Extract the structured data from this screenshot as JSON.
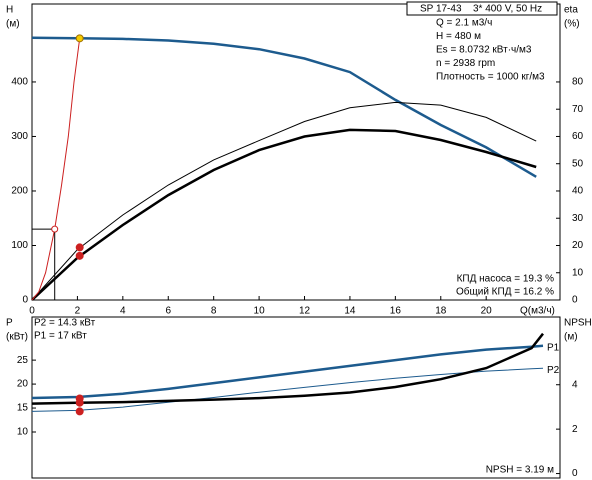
{
  "chart_data": [
    {
      "type": "line",
      "model": "SP 17-43",
      "supply": "3* 400 V, 50 Hz",
      "info": [
        "Q = 2.1 м3/ч",
        "H = 480 м",
        "Es = 8.0732 кВт·ч/м3",
        "n = 2938 rpm",
        "Плотность = 1000 кг/м3"
      ],
      "notes": [
        "КПД насоса = 19.3 %",
        "Общий КПД = 16.2 %"
      ],
      "ylabel": "H",
      "yunit": "(м)",
      "y2label": "eta",
      "y2unit": "(%)",
      "xlabel": "Q(м3/ч)",
      "xlim": [
        0,
        23.25
      ],
      "xticks": [
        0,
        2,
        4,
        6,
        8,
        10,
        12,
        14,
        16,
        18,
        20
      ],
      "ylim": [
        0,
        543
      ],
      "yticks": [
        0,
        100,
        200,
        300,
        400
      ],
      "y2lim": [
        0,
        108.6
      ],
      "y2ticks": [
        0,
        10,
        20,
        30,
        40,
        50,
        60,
        70,
        80
      ],
      "series": [
        {
          "color": "#1d5b8e",
          "width": 2.5,
          "axis": "y",
          "x": [
            0,
            2,
            4,
            6,
            8,
            10,
            12,
            14,
            16,
            18,
            20,
            22.2
          ],
          "values": [
            481,
            480,
            479,
            476,
            470,
            460,
            443,
            418,
            367,
            321,
            280,
            226
          ]
        },
        {
          "color": "#000000",
          "width": 1,
          "axis": "y2",
          "x": [
            0,
            2,
            4,
            6,
            8,
            10,
            12,
            14,
            16,
            18,
            20,
            22.2
          ],
          "values": [
            0,
            18.5,
            31.2,
            42.2,
            51.4,
            58.5,
            65.5,
            70.5,
            72.5,
            71.5,
            67,
            58.3
          ]
        },
        {
          "color": "#000000",
          "width": 2.5,
          "axis": "y2",
          "x": [
            0,
            2,
            4,
            6,
            8,
            10,
            12,
            14,
            16,
            18,
            20,
            22.2
          ],
          "values": [
            0,
            15.5,
            27.5,
            38.5,
            47.7,
            55,
            60,
            62.4,
            62,
            58.7,
            54.3,
            48.8
          ]
        },
        {
          "color": "#cc2020",
          "width": 1,
          "axis": "y",
          "x": [
            0,
            0.3,
            0.6,
            1,
            1.3,
            1.6,
            1.85,
            2.1
          ],
          "values": [
            0,
            15,
            50,
            130,
            210,
            300,
            400,
            480
          ]
        }
      ],
      "reference": {
        "x": 1,
        "y": 130,
        "color": "#cc2020"
      },
      "markers": [
        {
          "x": 2.1,
          "y": 480,
          "axis": "y",
          "color": "#f5cc00"
        },
        {
          "x": 2.1,
          "y": 19.3,
          "axis": "y2",
          "color": "#cc2020"
        },
        {
          "x": 2.1,
          "y": 16.2,
          "axis": "y2",
          "color": "#cc2020"
        }
      ]
    },
    {
      "type": "line",
      "notes_top": [
        "P2 = 14.3 кВт",
        "P1 = 17 кВт"
      ],
      "notes": [
        "NPSH = 3.19 м"
      ],
      "ylabel": "P",
      "yunit": "(кВт)",
      "y2label": "NPSH",
      "y2unit": "(м)",
      "xlim": [
        0,
        23.25
      ],
      "ylim": [
        0.4,
        34
      ],
      "yticks": [
        10,
        15,
        20,
        25
      ],
      "y2lim": [
        -0.2,
        7.05
      ],
      "y2ticks": [
        0,
        2,
        4
      ],
      "series": [
        {
          "name": "P1",
          "color": "#1d5b8e",
          "width": 2.5,
          "axis": "y",
          "x": [
            0,
            2,
            4,
            6,
            8,
            10,
            12,
            14,
            16,
            18,
            20,
            22,
            22.5
          ],
          "values": [
            17.1,
            17.3,
            18,
            19,
            20.2,
            21.4,
            22.6,
            23.8,
            25,
            26.2,
            27.2,
            27.8,
            28
          ]
        },
        {
          "name": "P2",
          "color": "#1d5b8e",
          "width": 1,
          "axis": "y",
          "x": [
            0,
            2,
            4,
            6,
            8,
            10,
            12,
            14,
            16,
            18,
            20,
            22,
            22.5
          ],
          "values": [
            14.3,
            14.5,
            15.2,
            16.2,
            17.2,
            18.3,
            19.3,
            20.3,
            21.2,
            22,
            22.7,
            23.2,
            23.3
          ]
        },
        {
          "color": "#000000",
          "width": 2.5,
          "axis": "y2",
          "x": [
            0,
            2,
            4,
            6,
            8,
            10,
            12,
            14,
            16,
            18,
            20,
            22,
            22.5
          ],
          "values": [
            3.15,
            3.19,
            3.22,
            3.27,
            3.33,
            3.4,
            3.5,
            3.65,
            3.9,
            4.25,
            4.75,
            5.65,
            6.3
          ]
        }
      ],
      "markers": [
        {
          "x": 2.1,
          "y": 17,
          "axis": "y",
          "color": "#cc2020"
        },
        {
          "x": 2.1,
          "y": 14.3,
          "axis": "y",
          "color": "#cc2020"
        },
        {
          "x": 2.1,
          "y": 3.19,
          "axis": "y2",
          "color": "#cc2020"
        }
      ]
    }
  ]
}
